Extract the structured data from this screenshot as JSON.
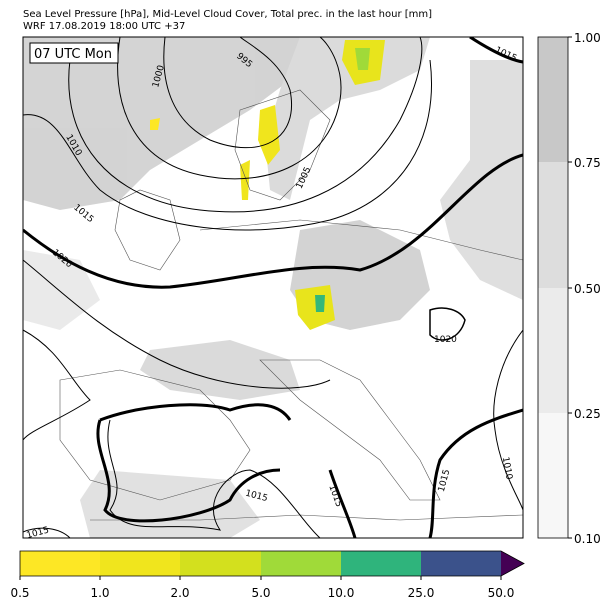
{
  "header": {
    "title": "Sea Level Pressure [hPa], Mid-Level Cloud Cover, Total prec. in the last hour [mm]",
    "subtitle": "WRF 17.08.2019 18:00 UTC +37"
  },
  "time_label": "07 UTC Mon",
  "cloud_colorbar": {
    "labels": [
      "1.00",
      "0.75",
      "0.50",
      "0.25",
      "0.10"
    ]
  },
  "precip_colorbar": {
    "labels": [
      "0.5",
      "1.0",
      "2.0",
      "5.0",
      "10.0",
      "25.0",
      "50.0"
    ]
  },
  "contour_labels": [
    "995",
    "1000",
    "1005",
    "1010",
    "1015",
    "1015",
    "1020",
    "1020",
    "1015",
    "1015",
    "1015",
    "1010",
    "1015"
  ]
}
